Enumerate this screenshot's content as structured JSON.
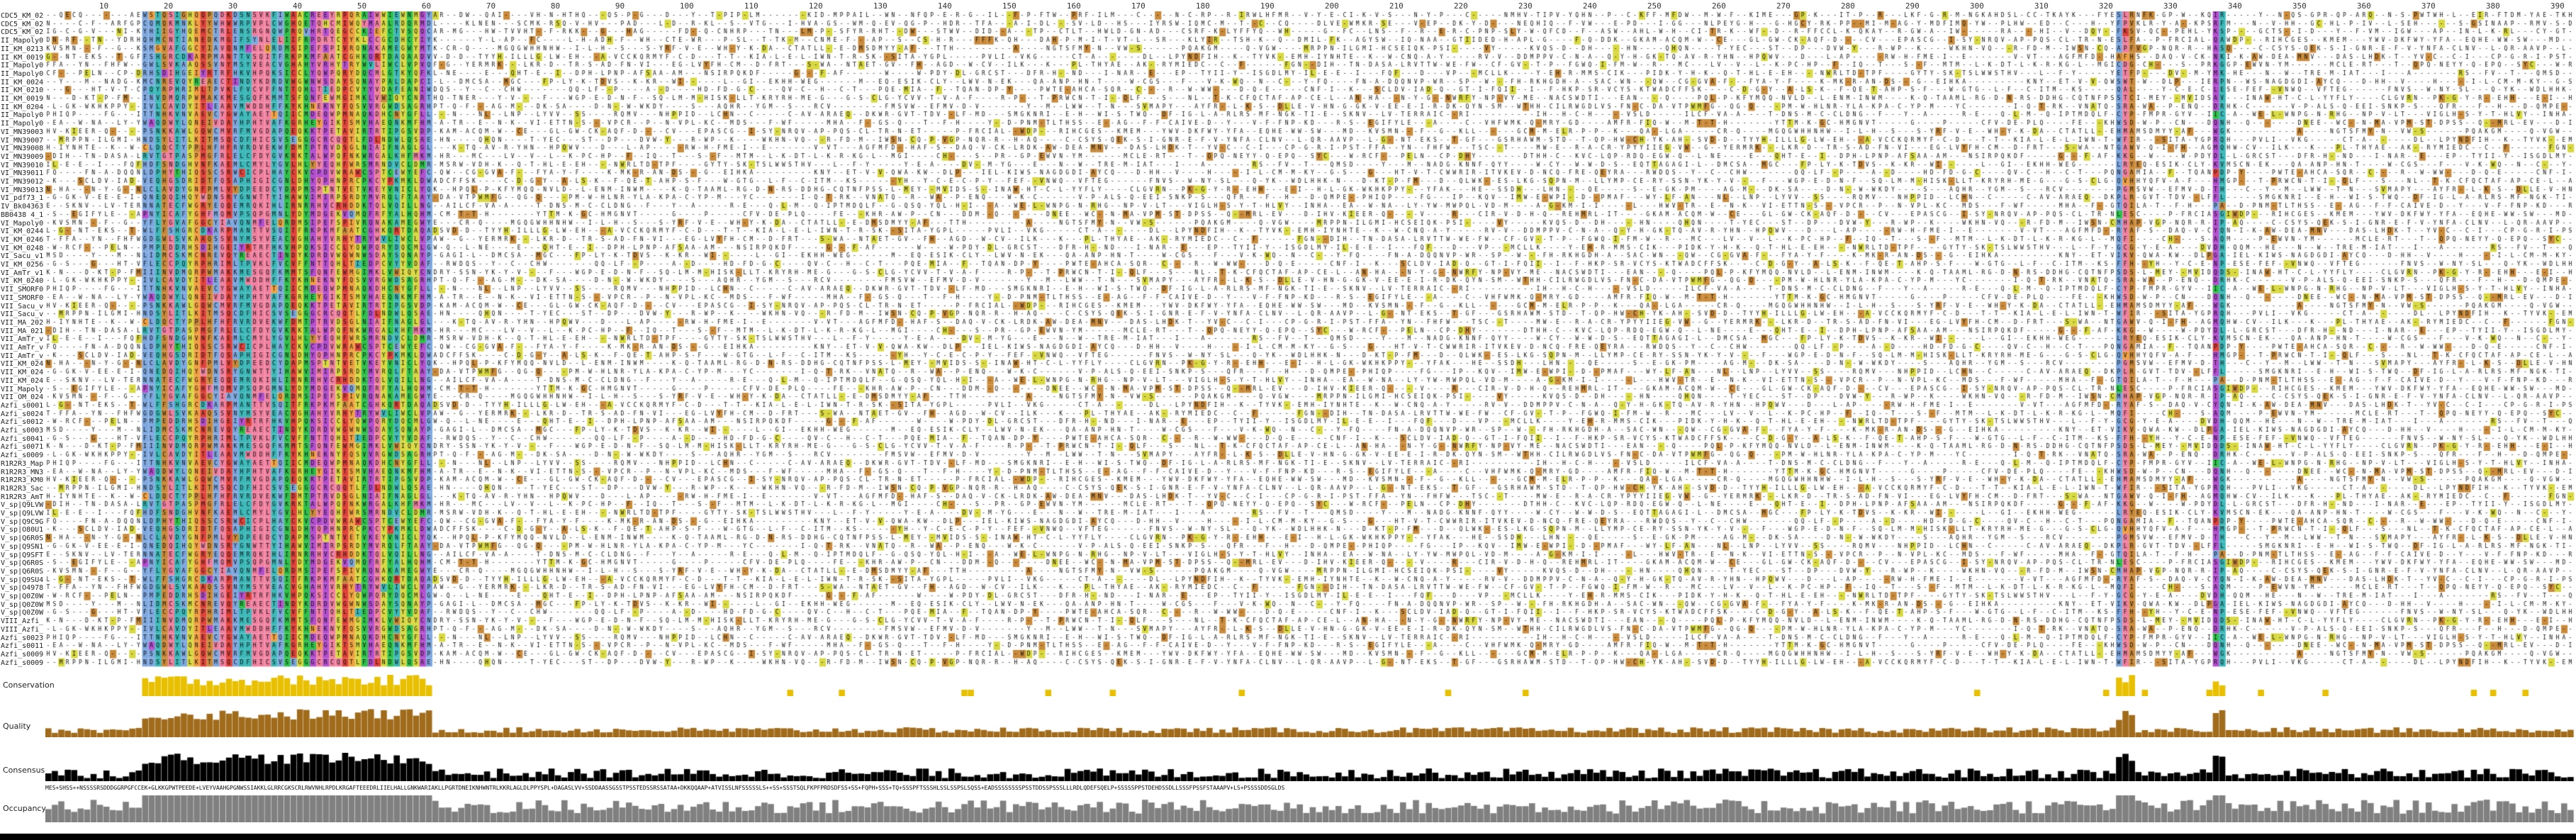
{
  "ruler": {
    "ticks": [
      "10",
      "20",
      "30",
      "40",
      "50",
      "60",
      "70",
      "80",
      "90",
      "100",
      "110",
      "120",
      "130",
      "140",
      "150",
      "160",
      "170",
      "180",
      "190",
      "200",
      "210",
      "220",
      "230",
      "240",
      "250",
      "260",
      "270",
      "280",
      "290",
      "300",
      "310",
      "320",
      "330",
      "340",
      "350",
      "360",
      "370",
      "380",
      "390"
    ]
  },
  "sequences": [
    "CDC5_KM_0204R...",
    "CDC5_KM_0246R...",
    "CDC5_KM_0248R...",
    "II_Mapoly0023S...",
    "II_KM_0213S...",
    "II_KM_0019S...",
    "II_Mapoly0023S...",
    "II_Mapoly0027R...",
    "II_KM_0024R...",
    "II_KM_0210R...",
    "II_KM_0019R...",
    "II_KM_0204R...",
    "II_Mapoly0034R...",
    "II_Mapoly0035R...",
    "VI_MN39003R...",
    "VI_MN39007R...",
    "VI_MN39008R...",
    "VI_MN39009R...",
    "VI_MN39010R...",
    "VI_MN39011R...",
    "VI_MN39012R...",
    "VI_MN39013R...",
    "VI_pdf73_1C...",
    "IV_Bk04363_1C...",
    "BB0438 4_1C...",
    "VI_Mapoly0058...",
    "VI_KM_0244R...",
    "VI_KM_0246R...",
    "VI_KM_0248R...",
    "VI_Sacu_v1...",
    "VI_KM_0256R...",
    "VI_AmTr_v1.0...",
    "VI_KM_0240R...",
    "VII_SMORF0017...",
    "VII_SMORF0018...",
    "VII_Sacu_v1.1...",
    "VII_Sacu_v1.1...",
    "VII_MA_2020R...",
    "VII_MA_0213R...",
    "VII_AmTr_v1.0...",
    "VII_AmTr_v1.0...",
    "VII_AmTr_v1.0...",
    "VII_KM_0240R...",
    "VII_KM_0246R...",
    "VII_KM_0248R...",
    "VII_Mapoly000...",
    "VII_OM_0240R...",
    "Azfi_s0001.g...",
    "Azfi_s0024.g...",
    "Azfi_s0012.g...",
    "Azfi_s0003.g...",
    "Azfi_s0041.g...",
    "Azfi_s0071.g...",
    "Azfi_s0009.g...",
    "R1R2R3_Mapol...",
    "R1R2R3_MN30...",
    "R1R2R3_KM01...",
    "R1R2R3_Sacu...",
    "R1R2R3_AmTr...",
    "V_sp|Q9LVW4...",
    "V_sp|Q9LVW5...",
    "V_sp|Q9C9G7...",
    "V_sp|O80U1...",
    "V_sp|Q6R0S1...",
    "V_sp|Q9SN1...",
    "V_sp|Q9SFT1...",
    "V_sp|Q6R0S2...",
    "V_sp|Q6R0S3...",
    "V_sp|Q9SU4...",
    "V_sp|O49782...",
    "V_sp|Q0Z0W1...",
    "V_sp|Q0Z0W2...",
    "V_sp|Q0Z0W3...",
    "VIII_Azfi_s0...",
    "VIII_Azfi_s0...",
    "Azfi_s0023.g...",
    "Azfi_s0011.g...",
    "Azfi_s0009.g...",
    "Azfi_s0009.g..."
  ],
  "tracks": {
    "conservation_label": "Conservation",
    "quality_label": "Quality",
    "consensus_label": "Consensus",
    "occupancy_label": "Occupancy"
  },
  "consensus_text": "MES+SHSS++NSSSSRSDDDGGRPGFCCEK+GLKKGPWTPEEDE+LVEYVAAHGPGNWSSIAKKLGLRRCGKSCRLRWVNHLRPDLKRGAFTEEEDRLIIELHALLGNKWARIAKLLPGRTDNEIKNHWNTRLKKRLAGLDLPPYSPL+DAGASLVV+SSDDAASSGSSTPSSTEDSSRSSATAA+DKKQQAAP+ATVISSLNFSSSSSLS++SS+SSSTSQLFKPFPRDSDFSS+SS+FQPH+SSS+TQ+SSSPFTSSSHLSSLSSPSLSQSS+EADSSSSSSSSPSSTDDSSPSSSLLLRDLQDEFSQELP+SSSSSPPSTDEHDSSDLLSSSFPSSFSTAAAPV+LS+PSSSSDDSGLDS",
  "colors": {
    "hydrophobic": "#7ea8df",
    "positive": "#e0423a",
    "negative": "#b44fcf",
    "polar": "#2ec24a",
    "glycine": "#f0a040",
    "proline": "#d8d840",
    "aromatic": "#3cb8b8",
    "cysteine": "#f080a0",
    "other": "#c98a3a",
    "conservation": "#e8c000",
    "quality": "#a06b1a",
    "consensus": "#000000",
    "occupancy": "#808080"
  }
}
